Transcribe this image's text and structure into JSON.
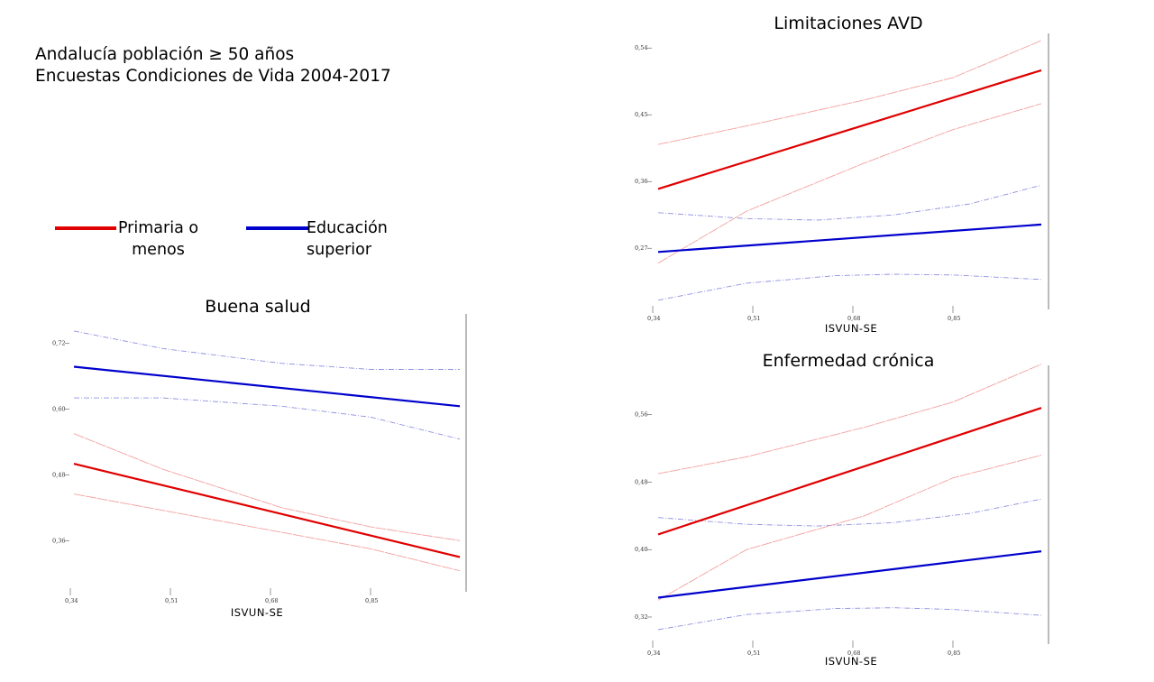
{
  "header": {
    "line1": "Andalucía población ≥ 50 años",
    "line2": "Encuestas Condiciones de Vida 2004-2017"
  },
  "legend": [
    {
      "label_line1": "Primaria o",
      "label_line2": "menos",
      "color": "#e00000"
    },
    {
      "label_line1": "Educación",
      "label_line2": "superior",
      "color": "#0000cc"
    }
  ],
  "colors": {
    "primaria": "#e00000",
    "primaria_ci": "#f4a0a0",
    "superior": "#0000cc",
    "superior_ci": "#9090e0",
    "axis": "#777777"
  },
  "chart_data": [
    {
      "id": "limitaciones",
      "type": "line",
      "title": "Limitaciones AVD",
      "xlabel": "ISVUN-SE",
      "xlim": [
        0.34,
        1.01
      ],
      "ylim": [
        0.19,
        0.55
      ],
      "x_ticks": [
        "0,34",
        "0,51",
        "0,68",
        "0,85"
      ],
      "x_tick_values": [
        0.34,
        0.51,
        0.68,
        0.85
      ],
      "y_ticks": [
        "0,27",
        "0,36",
        "0,45",
        "0,54"
      ],
      "y_tick_values": [
        0.27,
        0.36,
        0.45,
        0.54
      ],
      "series": [
        {
          "group": "primaria",
          "role": "estimate",
          "x": [
            0.35,
            1.0
          ],
          "y": [
            0.35,
            0.51
          ]
        },
        {
          "group": "primaria",
          "role": "ci_upper",
          "x": [
            0.35,
            0.5,
            0.7,
            0.85,
            1.0
          ],
          "y": [
            0.41,
            0.435,
            0.47,
            0.5,
            0.55
          ]
        },
        {
          "group": "primaria",
          "role": "ci_lower",
          "x": [
            0.35,
            0.5,
            0.7,
            0.85,
            1.0
          ],
          "y": [
            0.25,
            0.32,
            0.385,
            0.43,
            0.465
          ]
        },
        {
          "group": "superior",
          "role": "estimate",
          "x": [
            0.35,
            1.0
          ],
          "y": [
            0.265,
            0.302
          ]
        },
        {
          "group": "superior",
          "role": "ci_upper",
          "x": [
            0.35,
            0.5,
            0.62,
            0.75,
            0.88,
            1.0
          ],
          "y": [
            0.318,
            0.31,
            0.308,
            0.315,
            0.33,
            0.355
          ]
        },
        {
          "group": "superior",
          "role": "ci_lower",
          "x": [
            0.35,
            0.5,
            0.65,
            0.75,
            0.85,
            1.0
          ],
          "y": [
            0.2,
            0.223,
            0.233,
            0.235,
            0.234,
            0.228
          ]
        }
      ]
    },
    {
      "id": "buena_salud",
      "type": "line",
      "title": "Buena salud",
      "xlabel": "ISVUN-SE",
      "xlim": [
        0.34,
        1.01
      ],
      "ylim": [
        0.27,
        0.76
      ],
      "x_ticks": [
        "0,34",
        "0,51",
        "0,68",
        "0,85"
      ],
      "x_tick_values": [
        0.34,
        0.51,
        0.68,
        0.85
      ],
      "y_ticks": [
        "0,36",
        "0,48",
        "0,60",
        "0,72"
      ],
      "y_tick_values": [
        0.36,
        0.48,
        0.6,
        0.72
      ],
      "series": [
        {
          "group": "primaria",
          "role": "estimate",
          "x": [
            0.35,
            1.0
          ],
          "y": [
            0.5,
            0.33
          ]
        },
        {
          "group": "primaria",
          "role": "ci_upper",
          "x": [
            0.35,
            0.5,
            0.7,
            0.85,
            1.0
          ],
          "y": [
            0.555,
            0.49,
            0.42,
            0.385,
            0.36
          ]
        },
        {
          "group": "primaria",
          "role": "ci_lower",
          "x": [
            0.35,
            0.5,
            0.7,
            0.85,
            1.0
          ],
          "y": [
            0.445,
            0.415,
            0.375,
            0.345,
            0.305
          ]
        },
        {
          "group": "superior",
          "role": "estimate",
          "x": [
            0.35,
            1.0
          ],
          "y": [
            0.677,
            0.605
          ]
        },
        {
          "group": "superior",
          "role": "ci_upper",
          "x": [
            0.35,
            0.5,
            0.7,
            0.85,
            1.0
          ],
          "y": [
            0.742,
            0.71,
            0.683,
            0.672,
            0.672
          ]
        },
        {
          "group": "superior",
          "role": "ci_lower",
          "x": [
            0.35,
            0.5,
            0.7,
            0.85,
            1.0
          ],
          "y": [
            0.62,
            0.62,
            0.605,
            0.585,
            0.545
          ]
        }
      ]
    },
    {
      "id": "enfermedad",
      "type": "line",
      "title": "Enfermedad crónica",
      "xlabel": "ISVUN-SE",
      "xlim": [
        0.34,
        1.01
      ],
      "ylim": [
        0.29,
        0.61
      ],
      "x_ticks": [
        "0,34",
        "0,51",
        "0,68",
        "0,85"
      ],
      "x_tick_values": [
        0.34,
        0.51,
        0.68,
        0.85
      ],
      "y_ticks": [
        "0,32",
        "0,40",
        "0,48",
        "0,56"
      ],
      "y_tick_values": [
        0.32,
        0.4,
        0.48,
        0.56
      ],
      "series": [
        {
          "group": "primaria",
          "role": "estimate",
          "x": [
            0.35,
            1.0
          ],
          "y": [
            0.418,
            0.568
          ]
        },
        {
          "group": "primaria",
          "role": "ci_upper",
          "x": [
            0.35,
            0.5,
            0.7,
            0.85,
            1.0
          ],
          "y": [
            0.49,
            0.51,
            0.545,
            0.575,
            0.62
          ]
        },
        {
          "group": "primaria",
          "role": "ci_lower",
          "x": [
            0.35,
            0.5,
            0.7,
            0.85,
            1.0
          ],
          "y": [
            0.34,
            0.4,
            0.44,
            0.485,
            0.512
          ]
        },
        {
          "group": "superior",
          "role": "estimate",
          "x": [
            0.35,
            1.0
          ],
          "y": [
            0.343,
            0.398
          ]
        },
        {
          "group": "superior",
          "role": "ci_upper",
          "x": [
            0.35,
            0.5,
            0.62,
            0.75,
            0.88,
            1.0
          ],
          "y": [
            0.438,
            0.43,
            0.428,
            0.432,
            0.443,
            0.46
          ]
        },
        {
          "group": "superior",
          "role": "ci_lower",
          "x": [
            0.35,
            0.5,
            0.65,
            0.75,
            0.85,
            1.0
          ],
          "y": [
            0.305,
            0.323,
            0.33,
            0.331,
            0.329,
            0.322
          ]
        }
      ]
    }
  ]
}
